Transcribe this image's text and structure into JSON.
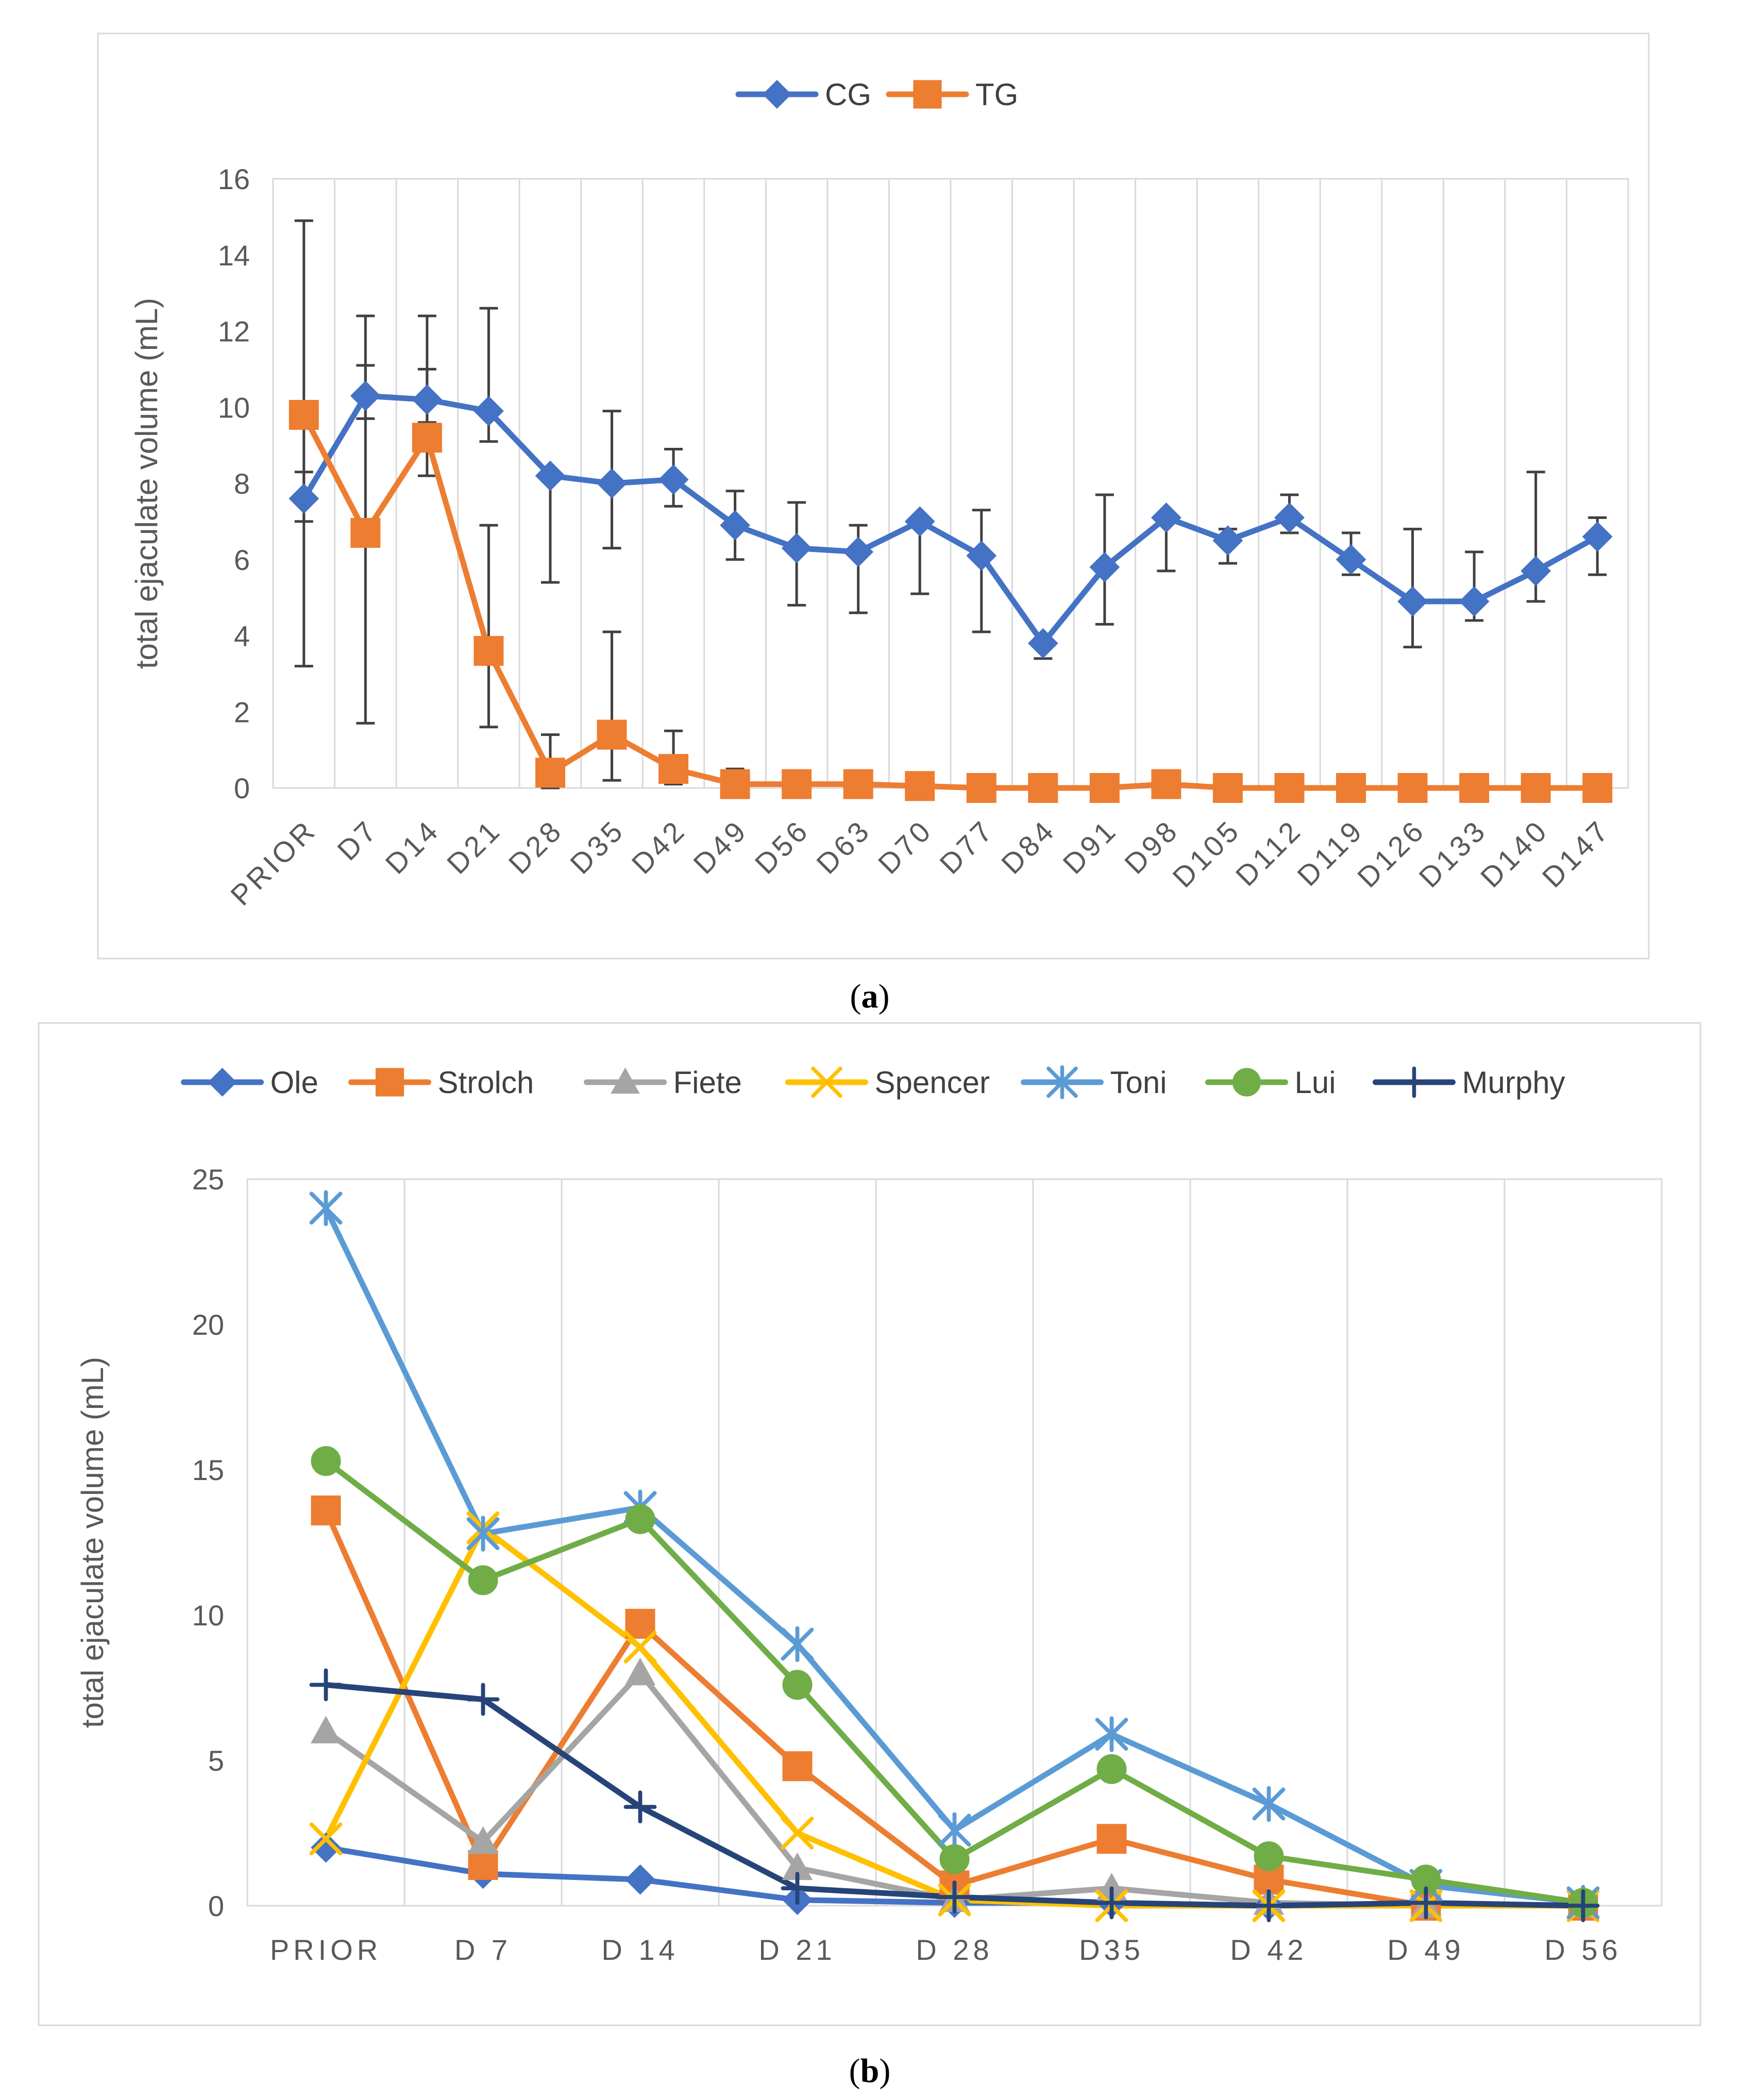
{
  "chart_data": [
    {
      "panel": "a",
      "caption_letter": "a",
      "type": "line",
      "title": "",
      "ylabel": "total ejaculate volume (mL)",
      "xlabel": "",
      "ylim": [
        0,
        16
      ],
      "yticks": [
        "0",
        "2",
        "4",
        "6",
        "8",
        "10",
        "12",
        "14",
        "16"
      ],
      "categories": [
        "PRIOR",
        "D7",
        "D14",
        "D21",
        "D28",
        "D35",
        "D42",
        "D49",
        "D56",
        "D63",
        "D70",
        "D77",
        "D84",
        "D91",
        "D98",
        "D105",
        "D112",
        "D119",
        "D126",
        "D133",
        "D140",
        "D147"
      ],
      "legend_position": "top-center",
      "series": [
        {
          "name": "CG",
          "color": "#4472C4",
          "marker": "diamond",
          "values": [
            7.6,
            10.3,
            10.2,
            9.9,
            8.2,
            8.0,
            8.1,
            6.9,
            6.3,
            6.2,
            7.0,
            6.1,
            3.8,
            5.8,
            7.1,
            6.5,
            7.1,
            6.0,
            4.9,
            4.9,
            5.7,
            6.6
          ],
          "error_low": [
            3.2,
            9.7,
            9.6,
            9.1,
            5.4,
            6.3,
            7.4,
            6.0,
            4.8,
            4.6,
            5.1,
            4.1,
            3.4,
            4.3,
            5.7,
            5.9,
            6.7,
            5.6,
            3.7,
            4.4,
            4.9,
            5.6
          ],
          "error_high": [
            14.9,
            12.4,
            12.4,
            12.6,
            8.1,
            9.9,
            8.9,
            7.8,
            7.5,
            6.9,
            7.0,
            7.3,
            3.8,
            7.7,
            7.1,
            6.8,
            7.7,
            6.7,
            6.8,
            6.2,
            8.3,
            7.1
          ]
        },
        {
          "name": "TG",
          "color": "#ED7D31",
          "marker": "square",
          "values": [
            9.8,
            6.7,
            9.2,
            3.6,
            0.4,
            1.4,
            0.5,
            0.1,
            0.1,
            0.1,
            0.05,
            0.0,
            0.0,
            0.0,
            0.1,
            0.0,
            0.0,
            0.0,
            0.0,
            0.0,
            0.0,
            0.0
          ],
          "error_low": [
            7.0,
            1.7,
            8.2,
            1.6,
            0.0,
            0.2,
            0.1,
            0.0,
            0.0,
            0.0,
            0.0,
            0.0,
            0.0,
            0.0,
            0.0,
            0.0,
            0.0,
            0.0,
            0.0,
            0.0,
            0.0,
            0.0
          ],
          "error_high": [
            8.3,
            11.1,
            11.0,
            6.9,
            1.4,
            4.1,
            1.5,
            0.5,
            0.1,
            0.1,
            0.05,
            0.0,
            0.0,
            0.0,
            0.1,
            0.0,
            0.0,
            0.0,
            0.0,
            0.0,
            0.0,
            0.0
          ]
        }
      ]
    },
    {
      "panel": "b",
      "caption_letter": "b",
      "type": "line",
      "title": "",
      "ylabel": "total ejaculate volume (mL)",
      "xlabel": "",
      "ylim": [
        0,
        25
      ],
      "yticks": [
        "0",
        "5",
        "10",
        "15",
        "20",
        "25"
      ],
      "categories": [
        "PRIOR",
        "D 7",
        "D 14",
        "D 21",
        "D 28",
        "D35",
        "D 42",
        "D 49",
        "D 56"
      ],
      "legend_position": "top-center",
      "series": [
        {
          "name": "Ole",
          "color": "#4472C4",
          "marker": "diamond",
          "values": [
            2.0,
            1.1,
            0.9,
            0.2,
            0.1,
            0.1,
            0.0,
            0.0,
            0.0
          ]
        },
        {
          "name": "Strolch",
          "color": "#ED7D31",
          "marker": "square",
          "values": [
            13.6,
            1.4,
            9.7,
            4.8,
            0.7,
            2.3,
            0.9,
            0.0,
            0.0
          ]
        },
        {
          "name": "Fiete",
          "color": "#A5A5A5",
          "marker": "triangle",
          "values": [
            6.0,
            2.2,
            8.0,
            1.3,
            0.2,
            0.6,
            0.1,
            0.0,
            0.0
          ]
        },
        {
          "name": "Spencer",
          "color": "#FFC000",
          "marker": "x",
          "values": [
            2.3,
            13.0,
            8.9,
            2.5,
            0.2,
            0.0,
            0.0,
            0.0,
            0.0
          ]
        },
        {
          "name": "Toni",
          "color": "#5B9BD5",
          "marker": "star",
          "values": [
            24.0,
            12.8,
            13.7,
            9.0,
            2.6,
            5.9,
            3.5,
            0.7,
            0.1
          ]
        },
        {
          "name": "Lui",
          "color": "#70AD47",
          "marker": "circle",
          "values": [
            15.3,
            11.2,
            13.3,
            7.6,
            1.6,
            4.7,
            1.7,
            0.9,
            0.1
          ]
        },
        {
          "name": "Murphy",
          "color": "#264478",
          "marker": "plus",
          "values": [
            7.6,
            7.1,
            3.4,
            0.6,
            0.3,
            0.1,
            0.0,
            0.1,
            0.0
          ]
        }
      ]
    }
  ]
}
